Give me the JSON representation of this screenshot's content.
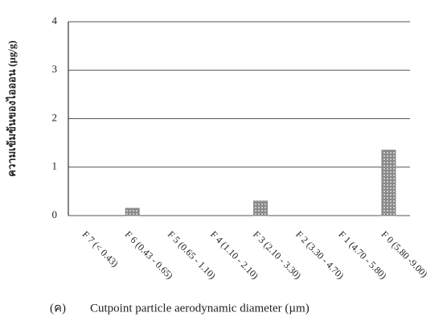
{
  "chart_data": {
    "type": "bar",
    "panel_label": "(ค)",
    "x_label": "Cutpoint particle aerodynamic diameter (µm)",
    "y_label": "ความเข้มข้นของไอออน (µg/g)",
    "categories": [
      "F 7 (< 0.43)",
      "F 6 (0.43 - 0.65)",
      "F 5 (0.65 - 1.10)",
      "F 4 (1.10 - 2.10)",
      "F 3 (2.10 - 3.30)",
      "F 2 (3.30 - 4.70)",
      "F 1 (4.70 - 5.80)",
      "F 0 (5.80 -9.00)"
    ],
    "values": [
      0,
      0.15,
      0,
      0,
      0.3,
      0,
      0,
      1.35
    ],
    "color": "#8a8a8a",
    "ylim": [
      0,
      4
    ],
    "yticks": [
      0,
      1,
      2,
      3,
      4
    ],
    "grid": true
  }
}
